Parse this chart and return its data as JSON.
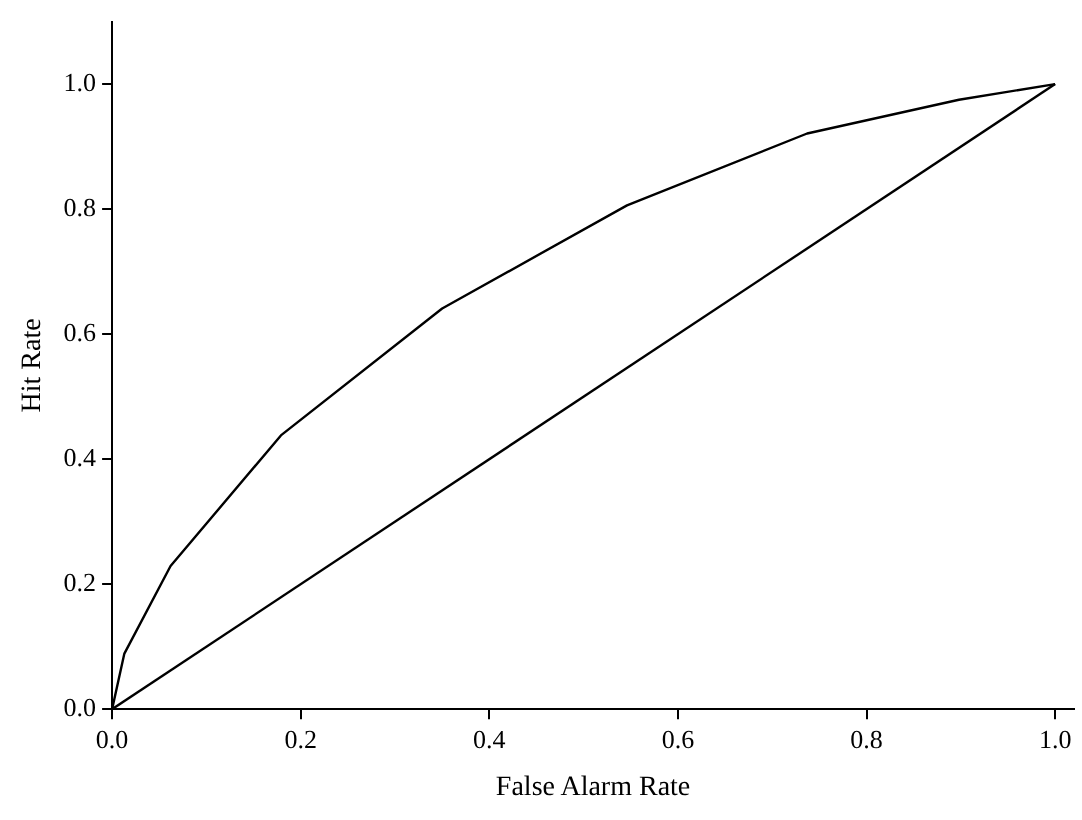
{
  "chart_data": {
    "type": "line",
    "xlabel": "False Alarm Rate",
    "ylabel": "Hit Rate",
    "xlim": [
      0,
      1.02
    ],
    "ylim": [
      0,
      1.1
    ],
    "xticks": [
      {
        "value": 0,
        "label": "0.0"
      },
      0.2,
      0.4,
      0.6,
      0.8,
      {
        "value": 1,
        "label": "1.0"
      }
    ],
    "yticks": [
      {
        "value": 0,
        "label": "0.0"
      },
      0.2,
      0.4,
      0.6,
      0.8,
      {
        "value": 1,
        "label": "1.0"
      }
    ],
    "grid": false,
    "legend": false,
    "marker": "none",
    "line_style": "solid",
    "series": [
      {
        "color": "#000000",
        "x": [
          0,
          0.013,
          0.062,
          0.179,
          0.35,
          0.546,
          0.737,
          0.898,
          1
        ],
        "values": [
          0,
          0.089,
          0.229,
          0.438,
          0.641,
          0.806,
          0.921,
          0.975,
          1
        ]
      },
      {
        "color": "#000000",
        "x": [
          0,
          1
        ],
        "values": [
          0,
          1
        ]
      }
    ]
  }
}
